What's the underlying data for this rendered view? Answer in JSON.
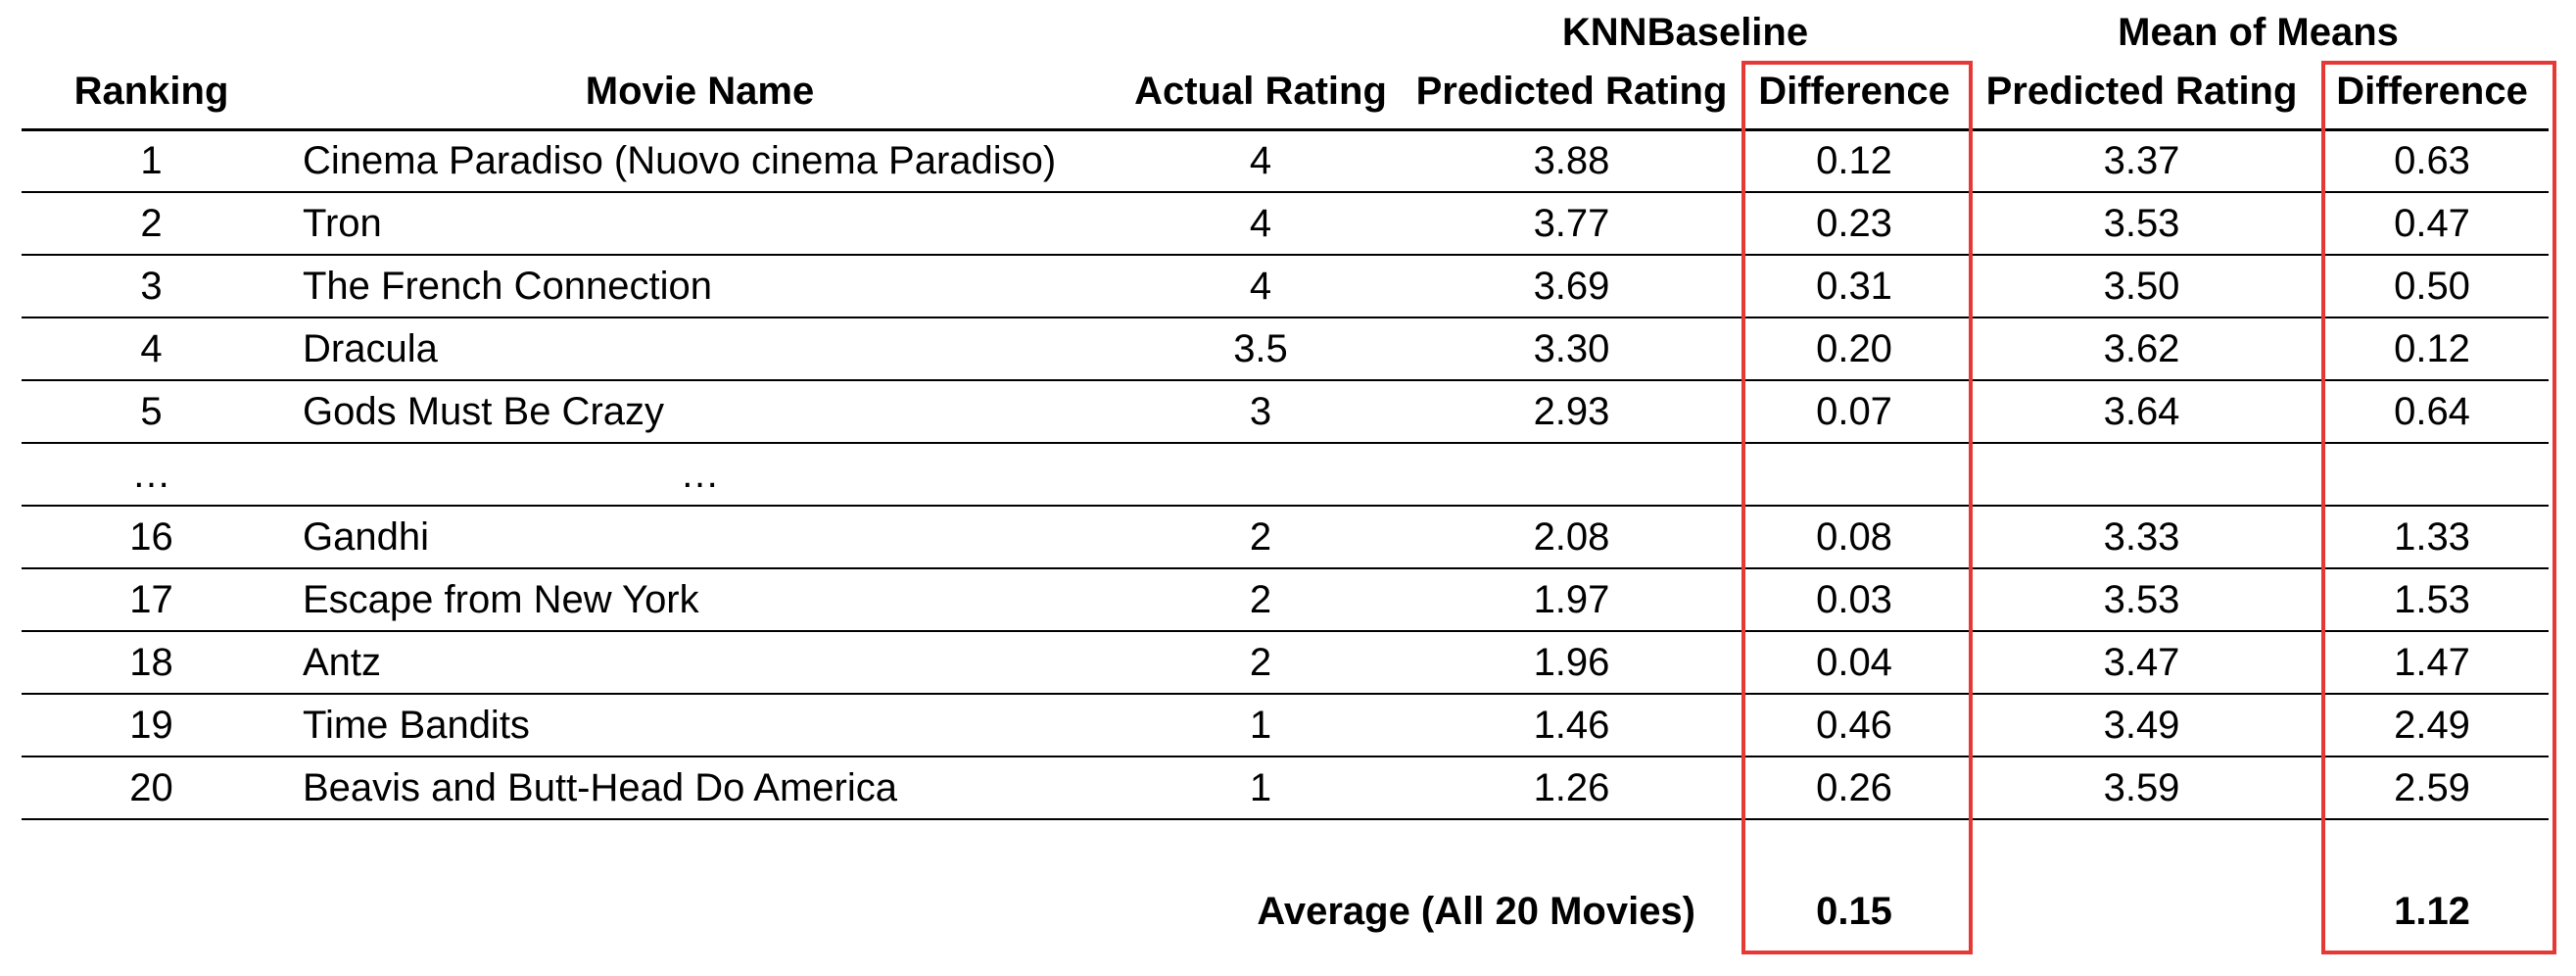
{
  "group_headers": {
    "knn": "KNNBaseline",
    "mean": "Mean of Means"
  },
  "columns": {
    "ranking": "Ranking",
    "movie_name": "Movie Name",
    "actual_rating": "Actual Rating",
    "knn_predicted": "Predicted Rating",
    "knn_difference": "Difference",
    "mean_predicted": "Predicted Rating",
    "mean_difference": "Difference"
  },
  "rows": [
    {
      "rank": "1",
      "name": "Cinema Paradiso (Nuovo cinema Paradiso)",
      "actual": "4",
      "knn_pred": "3.88",
      "knn_diff": "0.12",
      "mean_pred": "3.37",
      "mean_diff": "0.63"
    },
    {
      "rank": "2",
      "name": "Tron",
      "actual": "4",
      "knn_pred": "3.77",
      "knn_diff": "0.23",
      "mean_pred": "3.53",
      "mean_diff": "0.47"
    },
    {
      "rank": "3",
      "name": "The French Connection",
      "actual": "4",
      "knn_pred": "3.69",
      "knn_diff": "0.31",
      "mean_pred": "3.50",
      "mean_diff": "0.50"
    },
    {
      "rank": "4",
      "name": "Dracula",
      "actual": "3.5",
      "knn_pred": "3.30",
      "knn_diff": "0.20",
      "mean_pred": "3.62",
      "mean_diff": "0.12"
    },
    {
      "rank": "5",
      "name": "Gods Must Be Crazy",
      "actual": "3",
      "knn_pred": "2.93",
      "knn_diff": "0.07",
      "mean_pred": "3.64",
      "mean_diff": "0.64"
    },
    {
      "rank": "…",
      "name": "…",
      "actual": "",
      "knn_pred": "",
      "knn_diff": "",
      "mean_pred": "",
      "mean_diff": ""
    },
    {
      "rank": "16",
      "name": "Gandhi",
      "actual": "2",
      "knn_pred": "2.08",
      "knn_diff": "0.08",
      "mean_pred": "3.33",
      "mean_diff": "1.33"
    },
    {
      "rank": "17",
      "name": "Escape from New York",
      "actual": "2",
      "knn_pred": "1.97",
      "knn_diff": "0.03",
      "mean_pred": "3.53",
      "mean_diff": "1.53"
    },
    {
      "rank": "18",
      "name": "Antz",
      "actual": "2",
      "knn_pred": "1.96",
      "knn_diff": "0.04",
      "mean_pred": "3.47",
      "mean_diff": "1.47"
    },
    {
      "rank": "19",
      "name": "Time Bandits",
      "actual": "1",
      "knn_pred": "1.46",
      "knn_diff": "0.46",
      "mean_pred": "3.49",
      "mean_diff": "2.49"
    },
    {
      "rank": "20",
      "name": "Beavis and Butt-Head Do America",
      "actual": "1",
      "knn_pred": "1.26",
      "knn_diff": "0.26",
      "mean_pred": "3.59",
      "mean_diff": "2.59"
    }
  ],
  "average": {
    "label": "Average (All 20 Movies)",
    "knn_diff": "0.15",
    "mean_diff": "1.12"
  },
  "highlight_color": "#e53935"
}
